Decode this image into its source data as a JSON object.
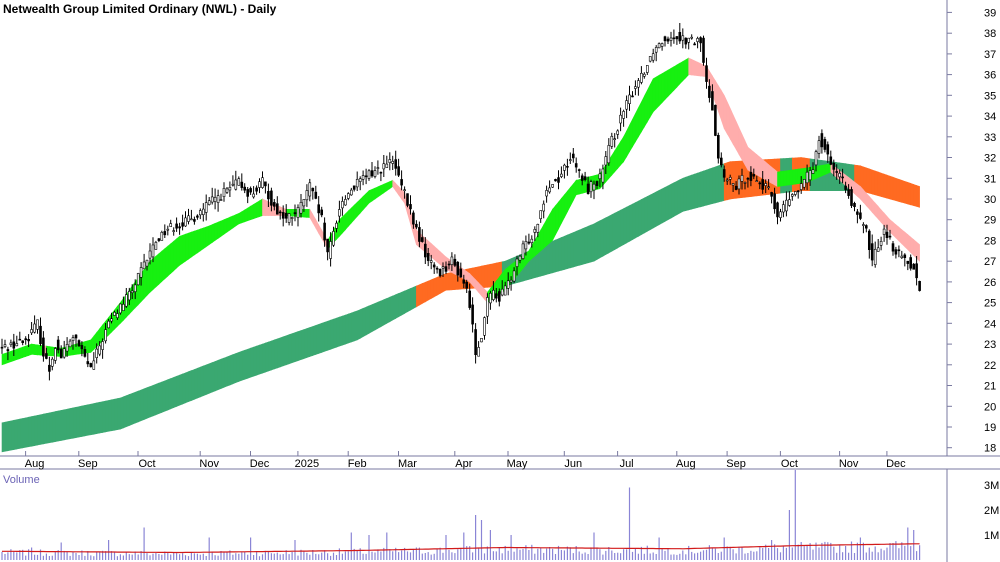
{
  "chart_data": {
    "type": "candlestick",
    "title": "Netwealth Group Limited Ordinary (NWL) - Daily",
    "y_ticks": [
      18,
      19,
      20,
      21,
      22,
      23,
      24,
      25,
      26,
      27,
      28,
      29,
      30,
      31,
      32,
      33,
      34,
      35,
      36,
      37,
      38,
      39
    ],
    "ylim": [
      17.6,
      39.6
    ],
    "x_labels": [
      "Aug",
      "Sep",
      "Oct",
      "Nov",
      "Dec",
      "2025",
      "Feb",
      "Mar",
      "Apr",
      "May",
      "Jun",
      "Jul",
      "Aug",
      "Sep",
      "Oct",
      "Nov",
      "Dec"
    ],
    "price_anchors": [
      [
        0,
        22.8
      ],
      [
        8,
        23.2
      ],
      [
        12,
        24.0
      ],
      [
        14,
        22.5
      ],
      [
        16,
        21.8
      ],
      [
        18,
        23.0
      ],
      [
        20,
        22.4
      ],
      [
        24,
        23.4
      ],
      [
        30,
        21.8
      ],
      [
        36,
        24.0
      ],
      [
        44,
        25.6
      ],
      [
        52,
        28.0
      ],
      [
        56,
        28.6
      ],
      [
        64,
        29.0
      ],
      [
        70,
        29.8
      ],
      [
        76,
        30.4
      ],
      [
        80,
        30.8
      ],
      [
        84,
        30.2
      ],
      [
        88,
        30.8
      ],
      [
        92,
        29.6
      ],
      [
        96,
        29.0
      ],
      [
        100,
        29.4
      ],
      [
        104,
        30.6
      ],
      [
        108,
        29.0
      ],
      [
        110,
        27.2
      ],
      [
        114,
        29.6
      ],
      [
        118,
        30.5
      ],
      [
        124,
        31.2
      ],
      [
        128,
        31.5
      ],
      [
        132,
        31.8
      ],
      [
        134,
        31.0
      ],
      [
        136,
        30.2
      ],
      [
        140,
        28.5
      ],
      [
        144,
        27.0
      ],
      [
        148,
        26.5
      ],
      [
        152,
        27.0
      ],
      [
        156,
        26.0
      ],
      [
        158,
        25.0
      ],
      [
        160,
        22.6
      ],
      [
        162,
        23.5
      ],
      [
        164,
        25.0
      ],
      [
        166,
        25.6
      ],
      [
        168,
        25.2
      ],
      [
        172,
        26.2
      ],
      [
        176,
        27.6
      ],
      [
        180,
        28.5
      ],
      [
        184,
        30.5
      ],
      [
        188,
        31.0
      ],
      [
        192,
        32.0
      ],
      [
        196,
        31.0
      ],
      [
        198,
        30.5
      ],
      [
        202,
        31.0
      ],
      [
        206,
        32.8
      ],
      [
        210,
        34.2
      ],
      [
        214,
        35.5
      ],
      [
        218,
        36.5
      ],
      [
        220,
        37.2
      ],
      [
        224,
        37.8
      ],
      [
        228,
        37.9
      ],
      [
        232,
        37.6
      ],
      [
        236,
        37.6
      ],
      [
        238,
        35.5
      ],
      [
        240,
        34.5
      ],
      [
        242,
        32.0
      ],
      [
        244,
        31.0
      ],
      [
        248,
        30.6
      ],
      [
        252,
        31.2
      ],
      [
        256,
        30.8
      ],
      [
        260,
        30.2
      ],
      [
        262,
        29.2
      ],
      [
        266,
        30.0
      ],
      [
        270,
        30.6
      ],
      [
        274,
        31.6
      ],
      [
        276,
        33.0
      ],
      [
        278,
        32.5
      ],
      [
        280,
        31.8
      ],
      [
        282,
        31.2
      ],
      [
        286,
        30.4
      ],
      [
        288,
        29.4
      ],
      [
        292,
        28.4
      ],
      [
        294,
        27.0
      ],
      [
        298,
        28.6
      ],
      [
        302,
        27.4
      ],
      [
        306,
        27.0
      ],
      [
        308,
        26.8
      ],
      [
        310,
        25.5
      ]
    ],
    "bands": {
      "long_top": [
        [
          0,
          19.2
        ],
        [
          40,
          20.4
        ],
        [
          80,
          22.6
        ],
        [
          120,
          24.6
        ],
        [
          150,
          26.4
        ],
        [
          170,
          27.0
        ],
        [
          200,
          28.8
        ],
        [
          230,
          31.0
        ],
        [
          246,
          31.8
        ],
        [
          270,
          32.0
        ],
        [
          290,
          31.6
        ],
        [
          310,
          30.6
        ]
      ],
      "long_bottom": [
        [
          0,
          17.8
        ],
        [
          40,
          18.9
        ],
        [
          80,
          21.2
        ],
        [
          120,
          23.2
        ],
        [
          150,
          25.6
        ],
        [
          170,
          25.8
        ],
        [
          200,
          27.0
        ],
        [
          230,
          29.4
        ],
        [
          246,
          30.0
        ],
        [
          270,
          30.4
        ],
        [
          290,
          30.4
        ],
        [
          310,
          29.6
        ]
      ],
      "short_top": [
        [
          0,
          22.5
        ],
        [
          10,
          23.0
        ],
        [
          20,
          22.8
        ],
        [
          30,
          23.2
        ],
        [
          40,
          25.0
        ],
        [
          50,
          27.0
        ],
        [
          60,
          28.2
        ],
        [
          70,
          28.7
        ],
        [
          80,
          29.3
        ],
        [
          88,
          30.0
        ],
        [
          96,
          29.5
        ],
        [
          104,
          29.5
        ],
        [
          110,
          28.0
        ],
        [
          114,
          29.0
        ],
        [
          124,
          30.4
        ],
        [
          132,
          30.9
        ],
        [
          136,
          30.3
        ],
        [
          140,
          28.5
        ],
        [
          150,
          27.2
        ],
        [
          158,
          26.4
        ],
        [
          164,
          25.5
        ],
        [
          170,
          26.6
        ],
        [
          178,
          27.5
        ],
        [
          186,
          29.5
        ],
        [
          194,
          30.9
        ],
        [
          202,
          31.2
        ],
        [
          210,
          33.0
        ],
        [
          220,
          35.8
        ],
        [
          232,
          36.8
        ],
        [
          238,
          36.4
        ],
        [
          244,
          35.0
        ],
        [
          252,
          32.5
        ],
        [
          262,
          31.3
        ],
        [
          272,
          31.5
        ],
        [
          280,
          31.7
        ],
        [
          290,
          30.6
        ],
        [
          300,
          29.0
        ],
        [
          310,
          27.8
        ]
      ],
      "short_bottom": [
        [
          0,
          22.0
        ],
        [
          10,
          22.5
        ],
        [
          20,
          22.4
        ],
        [
          30,
          22.6
        ],
        [
          40,
          24.0
        ],
        [
          50,
          25.5
        ],
        [
          60,
          26.8
        ],
        [
          70,
          27.8
        ],
        [
          80,
          28.8
        ],
        [
          88,
          29.2
        ],
        [
          96,
          29.2
        ],
        [
          104,
          29.1
        ],
        [
          110,
          27.6
        ],
        [
          114,
          28.2
        ],
        [
          124,
          29.8
        ],
        [
          132,
          30.6
        ],
        [
          136,
          29.8
        ],
        [
          140,
          27.8
        ],
        [
          150,
          26.6
        ],
        [
          158,
          26.0
        ],
        [
          164,
          25.0
        ],
        [
          170,
          25.6
        ],
        [
          178,
          27.0
        ],
        [
          186,
          28.0
        ],
        [
          194,
          30.2
        ],
        [
          202,
          30.5
        ],
        [
          210,
          31.8
        ],
        [
          220,
          34.2
        ],
        [
          232,
          36.0
        ],
        [
          238,
          35.9
        ],
        [
          244,
          33.4
        ],
        [
          252,
          31.4
        ],
        [
          262,
          30.6
        ],
        [
          272,
          30.8
        ],
        [
          280,
          31.3
        ],
        [
          290,
          30.0
        ],
        [
          300,
          28.4
        ],
        [
          310,
          27.0
        ]
      ]
    },
    "band_colors": {
      "long_up": "#3aa871",
      "long_down": "#ff6a21",
      "short_up": "#17f010",
      "short_down": "#ffadac"
    },
    "volume": {
      "label": "Volume",
      "y_ticks": [
        "1M",
        "2M",
        "3M"
      ],
      "ylim": [
        0,
        3.6
      ],
      "spikes": [
        [
          10,
          0.5
        ],
        [
          20,
          0.7
        ],
        [
          36,
          0.8
        ],
        [
          48,
          1.3
        ],
        [
          70,
          0.9
        ],
        [
          84,
          0.9
        ],
        [
          99,
          0.8
        ],
        [
          118,
          1.1
        ],
        [
          124,
          1.0
        ],
        [
          130,
          1.1
        ],
        [
          150,
          1.0
        ],
        [
          156,
          1.1
        ],
        [
          160,
          1.8
        ],
        [
          162,
          1.6
        ],
        [
          165,
          1.2
        ],
        [
          172,
          1.0
        ],
        [
          200,
          1.1
        ],
        [
          212,
          2.9
        ],
        [
          222,
          0.9
        ],
        [
          244,
          0.9
        ],
        [
          260,
          0.8
        ],
        [
          266,
          2.0
        ],
        [
          268,
          3.6
        ],
        [
          290,
          0.9
        ],
        [
          306,
          1.3
        ],
        [
          308,
          1.2
        ]
      ],
      "average_level": [
        [
          0,
          0.35
        ],
        [
          60,
          0.3
        ],
        [
          120,
          0.38
        ],
        [
          170,
          0.5
        ],
        [
          230,
          0.45
        ],
        [
          270,
          0.58
        ],
        [
          310,
          0.65
        ]
      ],
      "bar_color": "#8a85d6",
      "average_color": "#d21a1a"
    }
  }
}
